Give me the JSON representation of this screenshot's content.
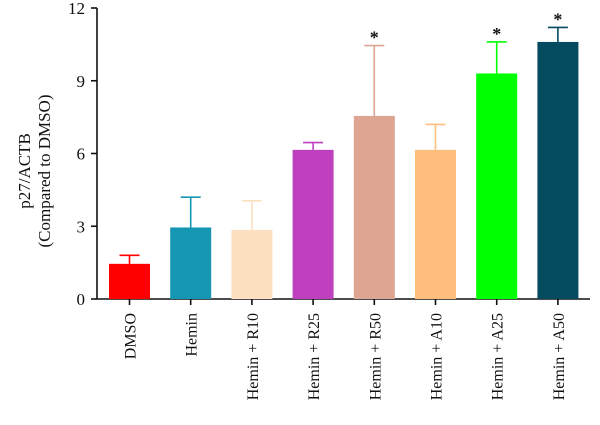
{
  "chart_data": {
    "type": "bar",
    "categories": [
      "DMSO",
      "Hemin",
      "Hemin + R10",
      "Hemin + R25",
      "Hemin + R50",
      "Hemin + A10",
      "Hemin + A25",
      "Hemin + A50"
    ],
    "values": [
      1.45,
      2.95,
      2.85,
      6.15,
      7.55,
      6.15,
      9.3,
      10.6
    ],
    "error_upper": [
      1.8,
      4.2,
      4.05,
      6.45,
      10.45,
      7.2,
      10.6,
      11.2
    ],
    "significance": [
      "",
      "",
      "",
      "",
      "*",
      "",
      "*",
      "*"
    ],
    "colors": [
      "#ff0000",
      "#1597b3",
      "#fde0c2",
      "#bf40bf",
      "#dda592",
      "#ffbe7d",
      "#00ff00",
      "#044b60"
    ],
    "ylabel_line1": "p27/ACTB",
    "ylabel_line2": "(Compared to DMSO)",
    "xlabel": "",
    "title": "",
    "ylim": [
      0,
      12
    ],
    "yticks": [
      0,
      3,
      6,
      9,
      12
    ],
    "grid": false,
    "legend": "none"
  }
}
